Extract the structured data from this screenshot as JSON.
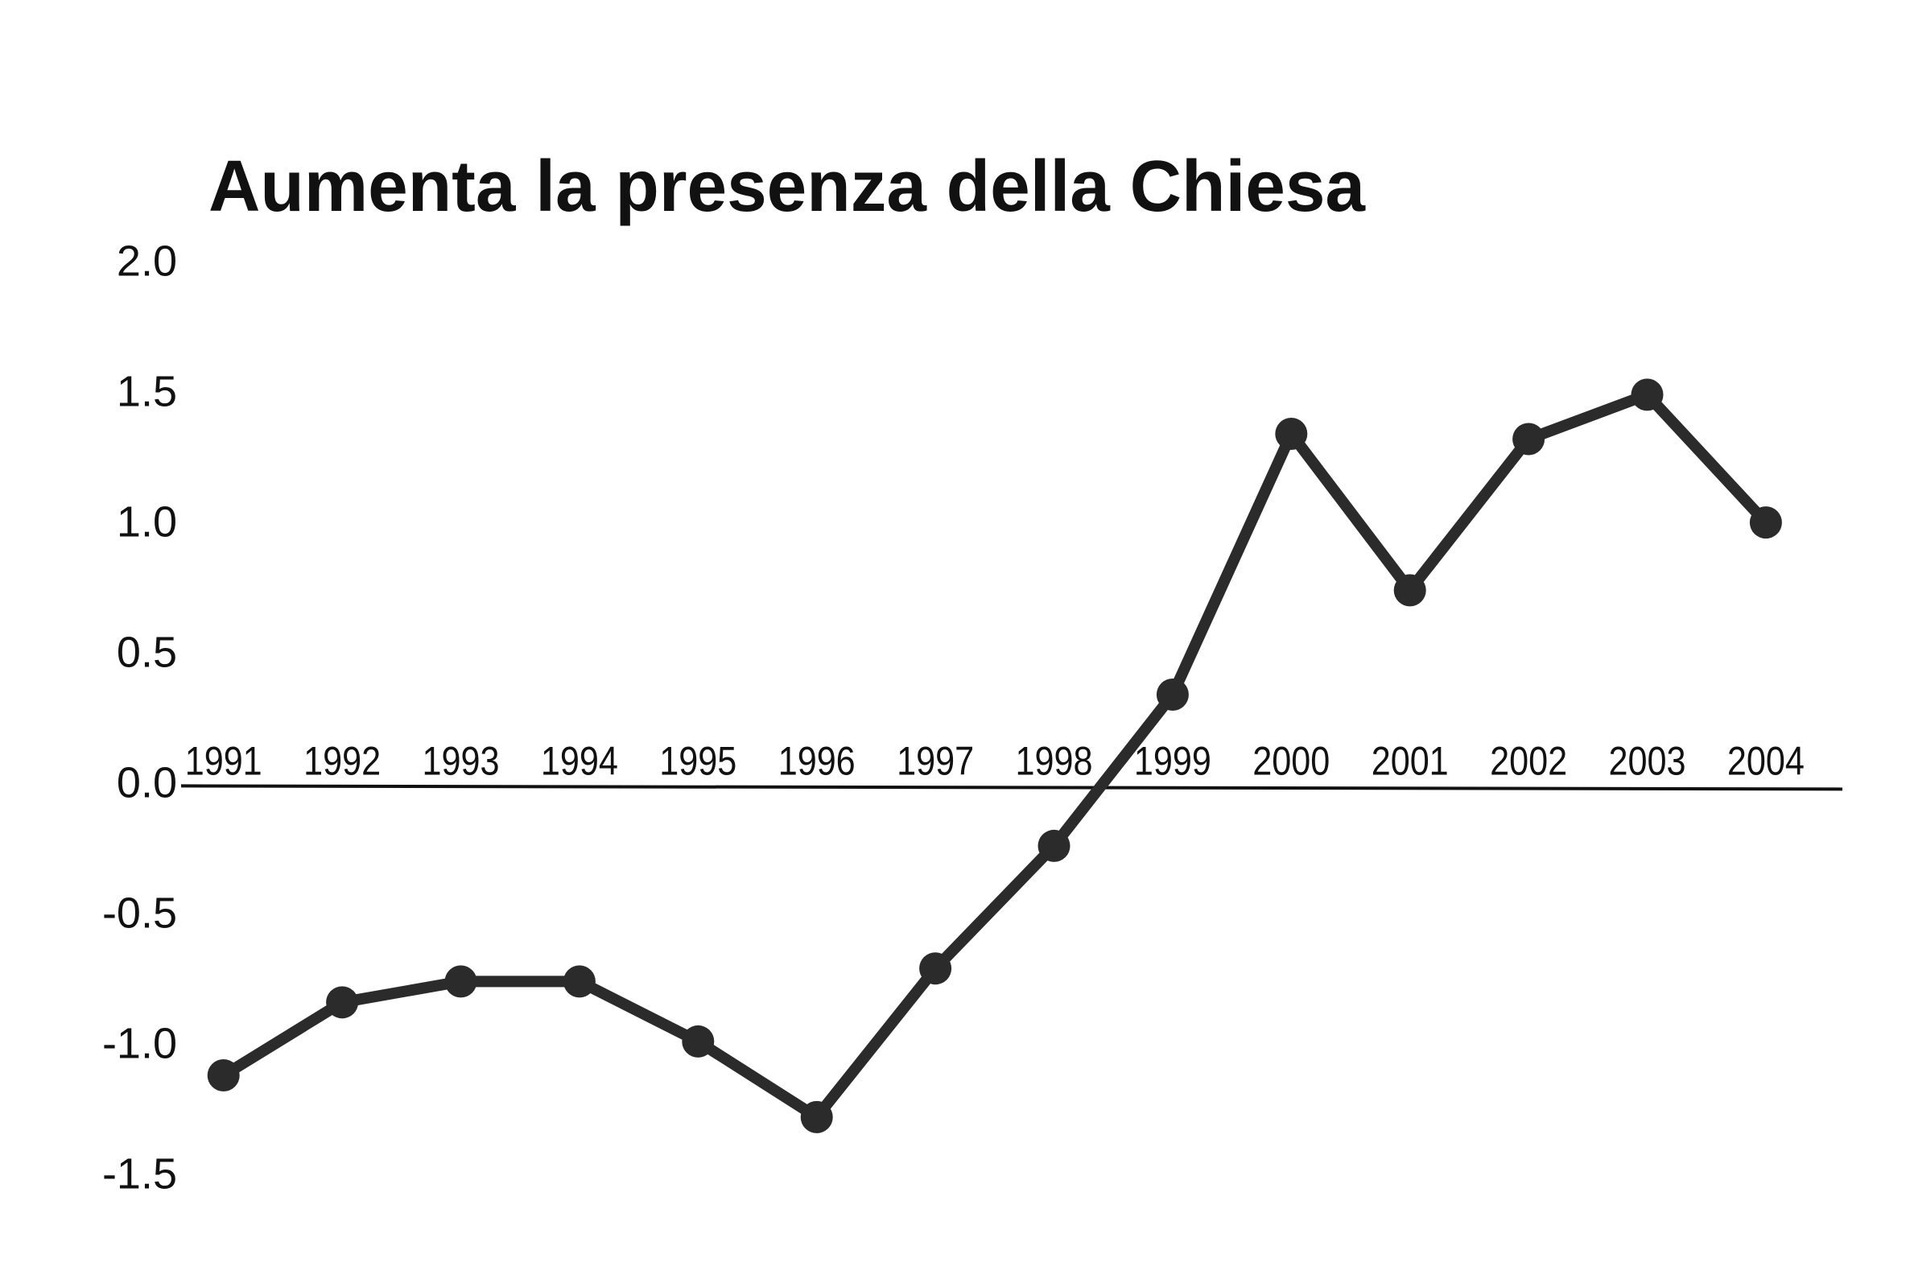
{
  "chart_data": {
    "type": "line",
    "title": "Aumenta la presenza della Chiesa",
    "categories": [
      "1991",
      "1992",
      "1993",
      "1994",
      "1995",
      "1996",
      "1997",
      "1998",
      "1999",
      "2000",
      "2001",
      "2002",
      "2003",
      "2004"
    ],
    "values": [
      -1.11,
      -0.83,
      -0.75,
      -0.75,
      -0.98,
      -1.27,
      -0.7,
      -0.23,
      0.35,
      1.35,
      0.75,
      1.33,
      1.5,
      1.01
    ],
    "color": "#2b2b2b",
    "ylim": [
      -1.65,
      2.1
    ],
    "yticks": [
      {
        "value": 2,
        "label": "2.0"
      },
      1.5,
      {
        "value": 1,
        "label": "1.0"
      },
      0.5,
      {
        "value": 0,
        "label": "0.0"
      },
      -0.5,
      {
        "value": -1,
        "label": "-1.0"
      },
      -1.5
    ],
    "grid": false
  }
}
